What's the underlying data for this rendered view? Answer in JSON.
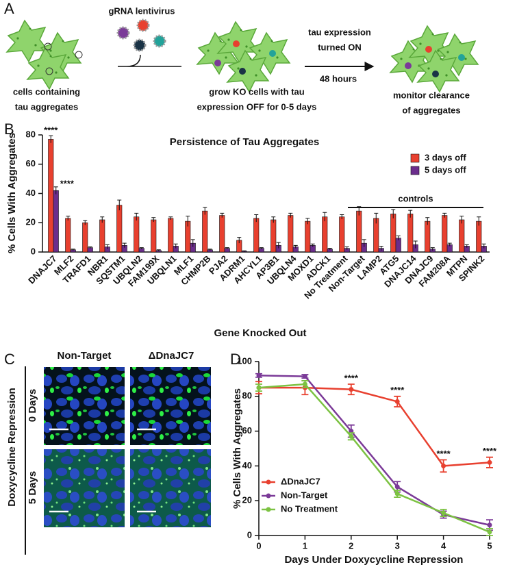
{
  "diagram": {
    "label": "A",
    "virus_label": "gRNA lentivirus",
    "start_caption": [
      "cells containing",
      "tau aggregates"
    ],
    "ko_caption": [
      "grow KO cells with tau",
      "expression OFF for 0-5 days"
    ],
    "switch_caption": [
      "tau expression",
      "turned ON"
    ],
    "time_caption": "48 hours",
    "end_caption": [
      "monitor clearance",
      "of aggregates"
    ]
  },
  "microscopy": {
    "label": "C",
    "columns": [
      "Non-Target",
      "ΔDnaJC7"
    ],
    "rows": [
      "0 Days",
      "5 Days"
    ],
    "row_title": "Doxycycline Repression"
  },
  "chart_data": [
    {
      "type": "bar",
      "panel_label": "B",
      "title": "Persistence of Tau Aggregates",
      "ylabel": "% Cells With Aggregates",
      "xlabel": "Gene Knocked Out",
      "group_label": "controls",
      "categories": [
        "DNAJC7",
        "MLF2",
        "TRAFD1",
        "NBR1",
        "SQSTM1",
        "UBQLN2",
        "FAM199X",
        "UBQLN1",
        "MLF1",
        "CHMP2B",
        "PJA2",
        "ADRM1",
        "AHCYL1",
        "AP3B1",
        "UBQLN4",
        "MOXD1",
        "ADCK1",
        "No Treatment",
        "Non-Target",
        "LAMP2",
        "ATG5",
        "DNAJC14",
        "DNAJC9",
        "FAM208A",
        "MTPN",
        "SPINK2"
      ],
      "series": [
        {
          "name": "3 days off",
          "color": "#e8402f",
          "values": [
            77,
            23,
            20,
            22,
            32,
            24,
            22,
            23,
            21,
            28,
            25,
            8,
            23,
            22,
            25,
            21,
            24,
            24,
            28,
            23,
            26,
            26,
            21,
            25,
            22,
            21
          ],
          "errors": [
            2.5,
            1.5,
            1.5,
            2,
            3.5,
            2.5,
            1.5,
            1,
            3.5,
            2.5,
            1.5,
            2,
            2.5,
            2,
            1.5,
            2,
            3,
            1.5,
            3,
            3.5,
            3,
            2.5,
            2.5,
            1.5,
            2.5,
            3
          ],
          "significance": [
            "****",
            null,
            null,
            null,
            null,
            null,
            null,
            null,
            null,
            null,
            null,
            null,
            null,
            null,
            null,
            null,
            null,
            null,
            null,
            null,
            null,
            null,
            null,
            null,
            null,
            null
          ]
        },
        {
          "name": "5 days off",
          "color": "#6b2d8c",
          "values": [
            42,
            1.5,
            3,
            3.5,
            4.5,
            2.5,
            1,
            4,
            6,
            1.5,
            2.5,
            0.5,
            2.5,
            4.5,
            3.5,
            4.5,
            2,
            2.5,
            6,
            2.5,
            9.5,
            5,
            2,
            5,
            4,
            4
          ],
          "errors": [
            2.5,
            0.5,
            0.5,
            1.5,
            1.5,
            0.5,
            0.5,
            1.5,
            2.5,
            0.5,
            0.5,
            0.3,
            0.5,
            2,
            1,
            1,
            0.5,
            1,
            2.5,
            1.5,
            1.5,
            2.5,
            1,
            1,
            1,
            1.5
          ],
          "significance": [
            "****",
            null,
            null,
            null,
            null,
            null,
            null,
            null,
            null,
            null,
            null,
            null,
            null,
            null,
            null,
            null,
            null,
            null,
            null,
            null,
            null,
            null,
            null,
            null,
            null,
            null
          ]
        }
      ],
      "ylim": [
        0,
        80
      ],
      "yticks": [
        0,
        20,
        40,
        60,
        80
      ],
      "legend": "upper right"
    },
    {
      "type": "line",
      "panel_label": "D",
      "xlabel": "Days Under Doxycycline Repression",
      "ylabel": "% Cells With Aggregates",
      "x": [
        0,
        1,
        2,
        3,
        4,
        5
      ],
      "series": [
        {
          "name": "ΔDnaJC7",
          "color": "#e8402f",
          "values": [
            85,
            85,
            84,
            77,
            40,
            42
          ],
          "errors": [
            3.5,
            4,
            3,
            3,
            3.5,
            3
          ],
          "significance": [
            null,
            null,
            "****",
            "****",
            "****",
            "****"
          ]
        },
        {
          "name": "Non-Target",
          "color": "#7b3a98",
          "values": [
            92,
            91.5,
            60,
            28,
            12,
            6
          ],
          "errors": [
            1,
            1,
            3.5,
            3,
            2,
            3
          ],
          "significance": [
            null,
            null,
            null,
            null,
            null,
            null
          ]
        },
        {
          "name": "No Treatment",
          "color": "#7cc242",
          "values": [
            85,
            87,
            57,
            24,
            13,
            2
          ],
          "errors": [
            2,
            2,
            2,
            2,
            2,
            2
          ],
          "significance": [
            null,
            null,
            null,
            null,
            null,
            null
          ]
        }
      ],
      "xlim": [
        0,
        5
      ],
      "xticks": [
        0,
        1,
        2,
        3,
        4,
        5
      ],
      "ylim": [
        0,
        100
      ],
      "yticks": [
        0,
        20,
        40,
        60,
        80,
        100
      ],
      "legend": "lower left"
    }
  ]
}
